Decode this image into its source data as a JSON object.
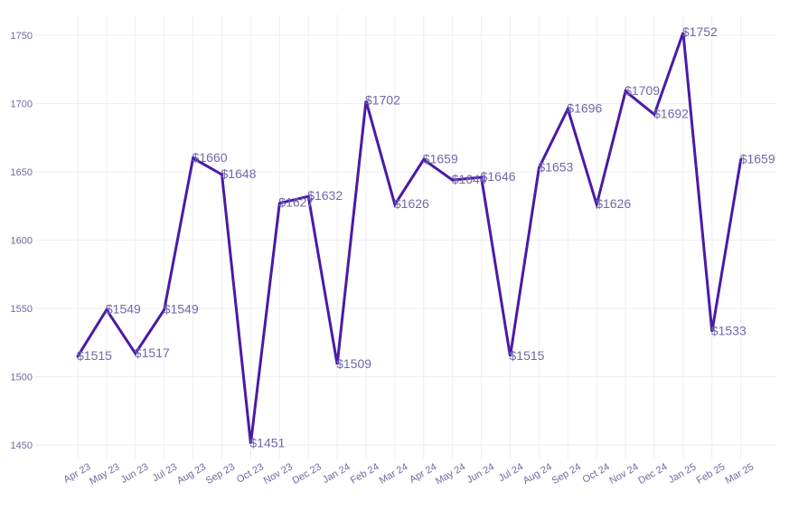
{
  "chart_data": {
    "type": "line",
    "title": "",
    "xlabel": "",
    "ylabel": "",
    "categories": [
      "Apr 23",
      "May 23",
      "Jun 23",
      "Jul 23",
      "Aug 23",
      "Sep 23",
      "Oct 23",
      "Nov 23",
      "Dec 23",
      "Jan 24",
      "Feb 24",
      "Mar 24",
      "Apr 24",
      "May 24",
      "Jun 24",
      "Jul 24",
      "Aug 24",
      "Sep 24",
      "Oct 24",
      "Nov 24",
      "Dec 24",
      "Jan 25",
      "Feb 25",
      "Mar 25"
    ],
    "series": [
      {
        "values": [
          1515,
          1549,
          1517,
          1549,
          1660,
          1648,
          1451,
          1627,
          1632,
          1509,
          1702,
          1626,
          1659,
          1644,
          1646,
          1515,
          1653,
          1696,
          1626,
          1709,
          1692,
          1752,
          1533,
          1659
        ],
        "labels": [
          "$1515",
          "$1549",
          "$1517",
          "$1549",
          "$1660",
          "$1648",
          "$1451",
          "$1627",
          "$1632",
          "$1509",
          "$1702",
          "$1626",
          "$1659",
          "$1644",
          "$1646",
          "$1515",
          "$1653",
          "$1696",
          "$1626",
          "$1709",
          "$1692",
          "$1752",
          "$1533",
          "$1659"
        ],
        "color": "#4a1aa8"
      }
    ],
    "ylim": [
      1440,
      1765
    ],
    "yticks": [
      1450,
      1500,
      1550,
      1600,
      1650,
      1700,
      1750
    ],
    "grid": true,
    "legend": "none"
  }
}
